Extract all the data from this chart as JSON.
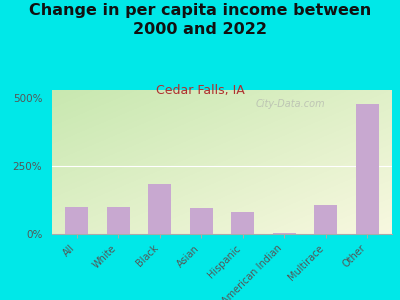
{
  "title": "Change in per capita income between\n2000 and 2022",
  "subtitle": "Cedar Falls, IA",
  "categories": [
    "All",
    "White",
    "Black",
    "Asian",
    "Hispanic",
    "American Indian",
    "Multirace",
    "Other"
  ],
  "values": [
    100,
    100,
    185,
    95,
    80,
    4,
    105,
    480
  ],
  "bar_color": "#c8a8d0",
  "title_fontsize": 11.5,
  "subtitle_color": "#b03030",
  "subtitle_fontsize": 9,
  "background_color": "#00e8e8",
  "plot_bg_top_left_color": "#c8e8b0",
  "plot_bg_bottom_right_color": "#f8f8e0",
  "ylabel_ticks": [
    "0%",
    "250%",
    "500%"
  ],
  "ytick_values": [
    0,
    250,
    500
  ],
  "ylim": [
    0,
    530
  ],
  "watermark": "City-Data.com"
}
